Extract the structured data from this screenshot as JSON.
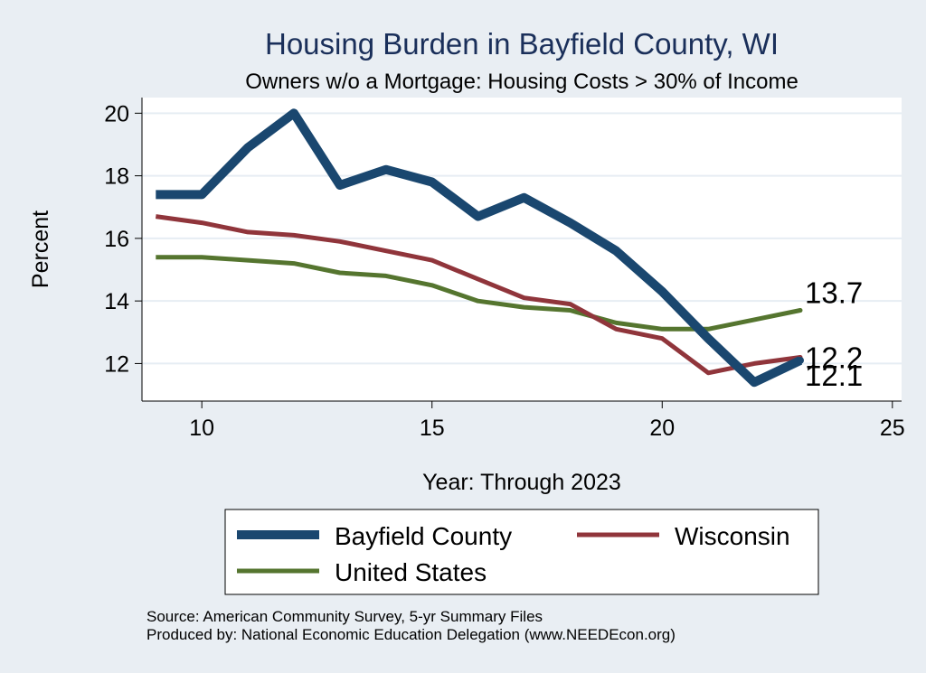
{
  "chart_data": {
    "type": "line",
    "title": "Housing Burden in Bayfield County, WI",
    "subtitle": "Owners w/o a Mortgage: Housing Costs > 30% of Income",
    "xlabel": "Year: Through 2023",
    "ylabel": "Percent",
    "xlim": [
      8.7,
      25.2
    ],
    "ylim": [
      10.8,
      20.5
    ],
    "x_ticks": [
      10,
      15,
      20,
      25
    ],
    "y_ticks": [
      12,
      14,
      16,
      18,
      20
    ],
    "grid": true,
    "legend_position": "bottom",
    "x": [
      9,
      10,
      11,
      12,
      13,
      14,
      15,
      16,
      17,
      18,
      19,
      20,
      21,
      22,
      23
    ],
    "series": [
      {
        "name": "Bayfield County",
        "color": "#1a476f",
        "values": [
          17.4,
          17.4,
          18.9,
          20.0,
          17.7,
          18.2,
          17.8,
          16.7,
          17.3,
          16.5,
          15.6,
          14.3,
          12.8,
          11.4,
          12.1
        ],
        "end_label": "12.1"
      },
      {
        "name": "Wisconsin",
        "color": "#90353b",
        "values": [
          16.7,
          16.5,
          16.2,
          16.1,
          15.9,
          15.6,
          15.3,
          14.7,
          14.1,
          13.9,
          13.1,
          12.8,
          11.7,
          12.0,
          12.2
        ],
        "end_label": "12.2"
      },
      {
        "name": "United States",
        "color": "#55752f",
        "values": [
          15.4,
          15.4,
          15.3,
          15.2,
          14.9,
          14.8,
          14.5,
          14.0,
          13.8,
          13.7,
          13.3,
          13.1,
          13.1,
          13.4,
          13.7
        ],
        "end_label": "13.7"
      }
    ]
  },
  "footnotes": {
    "source": "Source: American Community Survey, 5-yr Summary Files",
    "produced_by": "Produced by: National Economic Education Delegation (www.NEEDEcon.org)"
  }
}
